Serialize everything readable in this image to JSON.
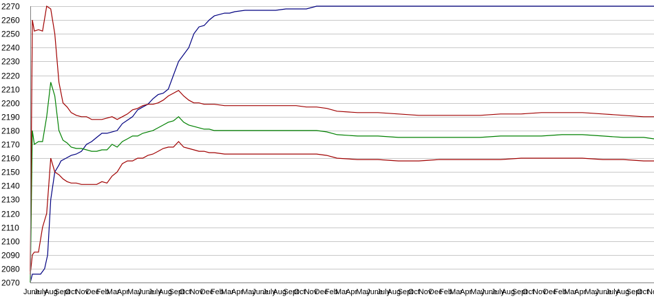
{
  "chart_data": {
    "type": "line",
    "title": "",
    "xlabel": "",
    "ylabel": "",
    "ylim": [
      2070,
      2270
    ],
    "yticks": [
      2070,
      2080,
      2090,
      2100,
      2110,
      2120,
      2130,
      2140,
      2150,
      2160,
      2170,
      2180,
      2190,
      2200,
      2210,
      2220,
      2230,
      2240,
      2250,
      2260,
      2270
    ],
    "grid": true,
    "legend": "none",
    "xlim": [
      0,
      61
    ],
    "x_tick_labels": [
      "June",
      "July",
      "Aug",
      "Sept",
      "Oct",
      "Nov",
      "Dec",
      "Feb",
      "Mar",
      "Apr",
      "May",
      "June",
      "July",
      "Aug",
      "Sept",
      "Oct",
      "Nov",
      "Dec",
      "Feb",
      "Mar",
      "Apr",
      "May",
      "June",
      "July",
      "Aug",
      "Sept",
      "Oct",
      "Nov",
      "Dec",
      "Feb",
      "Mar",
      "Apr",
      "May",
      "June",
      "July",
      "Aug",
      "Sept",
      "Oct",
      "Nov",
      "Dec",
      "Feb",
      "Mar",
      "Apr",
      "May",
      "June",
      "July",
      "Aug",
      "Sept",
      "Oct",
      "Nov",
      "Dec",
      "Feb",
      "Mar",
      "Apr",
      "May",
      "June",
      "July",
      "Aug",
      "Sept",
      "Oct",
      "Nov"
    ],
    "series": [
      {
        "color": "#000080",
        "x": [
          0,
          0.2,
          0.4,
          1,
          1.4,
          1.7,
          2,
          2.4,
          2.8,
          3,
          3.5,
          4,
          4.5,
          5,
          5.5,
          6,
          6.5,
          7,
          7.5,
          8,
          8.5,
          9,
          10,
          10.5,
          11,
          11.5,
          12,
          12.5,
          13,
          13.5,
          14,
          14.5,
          15,
          15.5,
          16,
          16.5,
          17,
          17.5,
          18,
          18.5,
          19,
          19.5,
          20,
          21,
          22,
          23,
          24,
          25,
          26,
          27,
          28,
          29,
          30,
          32,
          34,
          36,
          38,
          40,
          42,
          44,
          46,
          48,
          50,
          52,
          54,
          56,
          58,
          60,
          61
        ],
        "values": [
          2070,
          2076,
          2076,
          2076,
          2080,
          2090,
          2130,
          2150,
          2155,
          2158,
          2160,
          2162,
          2163,
          2165,
          2170,
          2172,
          2175,
          2178,
          2178,
          2179,
          2180,
          2185,
          2190,
          2195,
          2197,
          2199,
          2203,
          2206,
          2207,
          2210,
          2220,
          2230,
          2235,
          2240,
          2250,
          2255,
          2256,
          2260,
          2263,
          2264,
          2265,
          2265,
          2266,
          2267,
          2267,
          2267,
          2267,
          2268,
          2268,
          2268,
          2270,
          2270,
          2270,
          2270,
          2270,
          2270,
          2270,
          2270,
          2270,
          2270,
          2270,
          2270,
          2270,
          2270,
          2270,
          2270,
          2270,
          2270,
          2270
        ]
      },
      {
        "color": "#008000",
        "x": [
          0,
          0.2,
          0.4,
          0.8,
          1.2,
          1.6,
          2,
          2.4,
          2.8,
          3.2,
          3.6,
          4,
          4.5,
          5,
          5.5,
          6,
          6.5,
          7,
          7.5,
          8,
          8.5,
          9,
          9.5,
          10,
          10.5,
          11,
          11.5,
          12,
          12.5,
          13,
          13.5,
          14,
          14.5,
          15,
          15.5,
          16,
          16.5,
          17,
          17.5,
          18,
          19,
          20,
          21,
          22,
          23,
          24,
          25,
          26,
          27,
          28,
          29,
          30,
          32,
          34,
          36,
          38,
          40,
          42,
          44,
          46,
          48,
          50,
          52,
          54,
          56,
          58,
          60,
          61
        ],
        "values": [
          2070,
          2180,
          2170,
          2172,
          2172,
          2190,
          2215,
          2205,
          2180,
          2173,
          2171,
          2168,
          2167,
          2167,
          2166,
          2165,
          2165,
          2166,
          2166,
          2170,
          2168,
          2172,
          2174,
          2176,
          2176,
          2178,
          2179,
          2180,
          2182,
          2184,
          2186,
          2187,
          2190,
          2186,
          2184,
          2183,
          2182,
          2181,
          2181,
          2180,
          2180,
          2180,
          2180,
          2180,
          2180,
          2180,
          2180,
          2180,
          2180,
          2180,
          2179,
          2177,
          2176,
          2176,
          2175,
          2175,
          2175,
          2175,
          2175,
          2176,
          2176,
          2176,
          2177,
          2177,
          2176,
          2175,
          2175,
          2174
        ]
      },
      {
        "color": "#a00000",
        "x": [
          0,
          0.2,
          0.4,
          0.8,
          1.2,
          1.6,
          2,
          2.4,
          2.8,
          3.2,
          3.6,
          4,
          4.5,
          5,
          5.5,
          6,
          6.5,
          7,
          7.5,
          8,
          8.5,
          9,
          9.5,
          10,
          10.5,
          11,
          11.5,
          12,
          12.5,
          13,
          13.5,
          14,
          14.5,
          15,
          15.5,
          16,
          16.5,
          17,
          17.5,
          18,
          19,
          20,
          21,
          22,
          23,
          24,
          25,
          26,
          27,
          28,
          29,
          30,
          32,
          34,
          36,
          38,
          40,
          42,
          44,
          46,
          48,
          50,
          52,
          54,
          56,
          58,
          60,
          61
        ],
        "values": [
          2076,
          2090,
          2092,
          2092,
          2110,
          2120,
          2160,
          2150,
          2148,
          2145,
          2143,
          2142,
          2142,
          2141,
          2141,
          2141,
          2141,
          2143,
          2142,
          2147,
          2150,
          2156,
          2158,
          2158,
          2160,
          2160,
          2162,
          2163,
          2165,
          2167,
          2168,
          2168,
          2172,
          2168,
          2167,
          2166,
          2165,
          2165,
          2164,
          2164,
          2163,
          2163,
          2163,
          2163,
          2163,
          2163,
          2163,
          2163,
          2163,
          2163,
          2162,
          2160,
          2159,
          2159,
          2158,
          2158,
          2159,
          2159,
          2159,
          2159,
          2160,
          2160,
          2160,
          2160,
          2159,
          2159,
          2158,
          2158
        ]
      },
      {
        "color": "#a00000",
        "x": [
          0,
          0.2,
          0.4,
          0.8,
          1.2,
          1.6,
          2,
          2.4,
          2.8,
          3.2,
          3.6,
          4,
          4.5,
          5,
          5.5,
          6,
          6.5,
          7,
          7.5,
          8,
          8.5,
          9,
          9.5,
          10,
          10.5,
          11,
          11.5,
          12,
          12.5,
          13,
          13.5,
          14,
          14.5,
          15,
          15.5,
          16,
          16.5,
          17,
          17.5,
          18,
          19,
          20,
          21,
          22,
          23,
          24,
          25,
          26,
          27,
          28,
          29,
          30,
          32,
          34,
          36,
          38,
          40,
          42,
          44,
          46,
          48,
          50,
          52,
          54,
          56,
          58,
          60,
          61
        ],
        "values": [
          2078,
          2260,
          2252,
          2253,
          2252,
          2270,
          2268,
          2250,
          2215,
          2200,
          2197,
          2193,
          2191,
          2190,
          2190,
          2188,
          2188,
          2188,
          2189,
          2190,
          2188,
          2190,
          2192,
          2195,
          2196,
          2198,
          2199,
          2199,
          2200,
          2202,
          2205,
          2207,
          2209,
          2205,
          2202,
          2200,
          2200,
          2199,
          2199,
          2199,
          2198,
          2198,
          2198,
          2198,
          2198,
          2198,
          2198,
          2198,
          2197,
          2197,
          2196,
          2194,
          2193,
          2193,
          2192,
          2191,
          2191,
          2191,
          2191,
          2192,
          2192,
          2193,
          2193,
          2193,
          2192,
          2191,
          2190,
          2190
        ]
      }
    ]
  }
}
